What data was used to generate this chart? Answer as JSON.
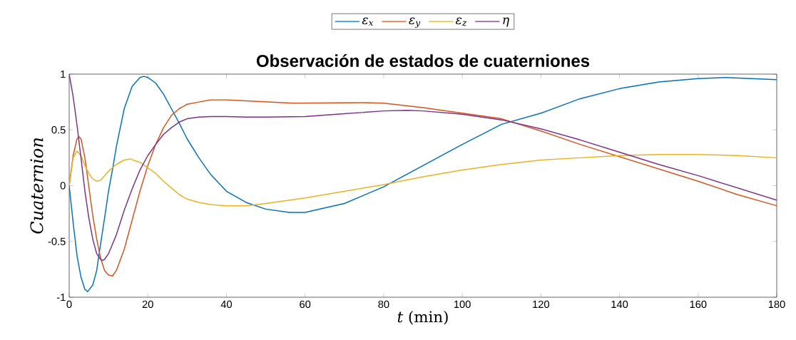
{
  "chart_data": {
    "type": "line",
    "title": "Observación de estados de cuaterniones",
    "xlabel": "*t* (min)",
    "ylabel": "Cuaternion",
    "xlim": [
      0,
      180
    ],
    "ylim": [
      -1,
      1
    ],
    "xticks": [
      0,
      20,
      40,
      60,
      80,
      100,
      120,
      140,
      160,
      180
    ],
    "yticks": [
      -1,
      -0.5,
      0,
      0.5,
      1
    ],
    "legend": "top",
    "series": [
      {
        "name": "ε$_{x}$",
        "color": "#0072bd",
        "x": [
          0,
          1,
          2,
          3,
          4,
          4.7,
          6,
          7,
          8,
          9,
          10,
          11,
          12,
          14,
          16,
          18,
          19,
          20,
          22,
          24,
          26,
          28,
          30,
          33,
          36,
          40,
          45,
          50,
          56,
          60,
          70,
          80,
          90,
          100,
          110,
          120,
          130,
          140,
          150,
          160,
          167,
          180
        ],
        "values": [
          0,
          -0.33,
          -0.63,
          -0.82,
          -0.93,
          -0.95,
          -0.89,
          -0.76,
          -0.52,
          -0.29,
          -0.05,
          0.14,
          0.35,
          0.69,
          0.89,
          0.97,
          0.98,
          0.97,
          0.92,
          0.82,
          0.69,
          0.56,
          0.42,
          0.25,
          0.1,
          -0.05,
          -0.15,
          -0.21,
          -0.24,
          -0.24,
          -0.16,
          -0.01,
          0.18,
          0.37,
          0.55,
          0.65,
          0.78,
          0.87,
          0.93,
          0.96,
          0.97,
          0.95
        ]
      },
      {
        "name": "ε$_{y}$",
        "color": "#d95319",
        "x": [
          0,
          1,
          2,
          2.5,
          3,
          4,
          5,
          6,
          7,
          8,
          9,
          10,
          11,
          12,
          14,
          16,
          18,
          20,
          22,
          24,
          26,
          28,
          30,
          33,
          36,
          40,
          45,
          57,
          75,
          80,
          90,
          100,
          110,
          120,
          130,
          140,
          150,
          160,
          170,
          180
        ],
        "values": [
          0,
          0.27,
          0.42,
          0.44,
          0.42,
          0.25,
          -0.01,
          -0.27,
          -0.48,
          -0.65,
          -0.76,
          -0.8,
          -0.81,
          -0.76,
          -0.57,
          -0.31,
          -0.05,
          0.18,
          0.37,
          0.52,
          0.63,
          0.69,
          0.73,
          0.75,
          0.77,
          0.77,
          0.76,
          0.74,
          0.745,
          0.74,
          0.7,
          0.65,
          0.6,
          0.49,
          0.37,
          0.26,
          0.15,
          0.04,
          -0.08,
          -0.18
        ]
      },
      {
        "name": "ε$_{z}$",
        "color": "#edb120",
        "x": [
          0,
          1,
          2,
          3,
          4,
          5,
          6,
          7,
          8,
          9,
          10,
          12,
          14,
          15.5,
          17,
          18,
          20,
          22,
          24,
          26,
          28,
          30,
          33,
          36,
          40,
          45,
          50,
          60,
          70,
          80,
          90,
          100,
          110,
          120,
          130,
          140,
          150,
          160,
          170,
          180
        ],
        "values": [
          0,
          0.25,
          0.31,
          0.27,
          0.18,
          0.11,
          0.06,
          0.04,
          0.05,
          0.09,
          0.13,
          0.19,
          0.23,
          0.24,
          0.22,
          0.21,
          0.16,
          0.11,
          0.04,
          -0.02,
          -0.08,
          -0.12,
          -0.15,
          -0.17,
          -0.18,
          -0.18,
          -0.16,
          -0.11,
          -0.05,
          0.01,
          0.08,
          0.14,
          0.19,
          0.23,
          0.25,
          0.27,
          0.28,
          0.28,
          0.27,
          0.25
        ]
      },
      {
        "name": "η",
        "color": "#7e2f8e",
        "x": [
          0,
          1,
          2,
          3,
          4,
          5,
          6,
          7,
          8,
          8.5,
          9,
          10,
          12,
          14,
          16,
          18,
          20,
          22,
          24,
          26,
          28,
          30,
          33,
          36,
          40,
          45,
          50,
          60,
          70,
          80,
          86,
          90,
          100,
          110,
          120,
          130,
          140,
          150,
          160,
          170,
          180
        ],
        "values": [
          1,
          0.8,
          0.54,
          0.25,
          -0.05,
          -0.29,
          -0.48,
          -0.61,
          -0.66,
          -0.67,
          -0.66,
          -0.61,
          -0.44,
          -0.22,
          -0.03,
          0.14,
          0.27,
          0.37,
          0.46,
          0.52,
          0.57,
          0.6,
          0.615,
          0.62,
          0.62,
          0.615,
          0.615,
          0.62,
          0.645,
          0.67,
          0.675,
          0.67,
          0.64,
          0.59,
          0.51,
          0.41,
          0.3,
          0.19,
          0.09,
          -0.02,
          -0.13
        ]
      }
    ]
  }
}
